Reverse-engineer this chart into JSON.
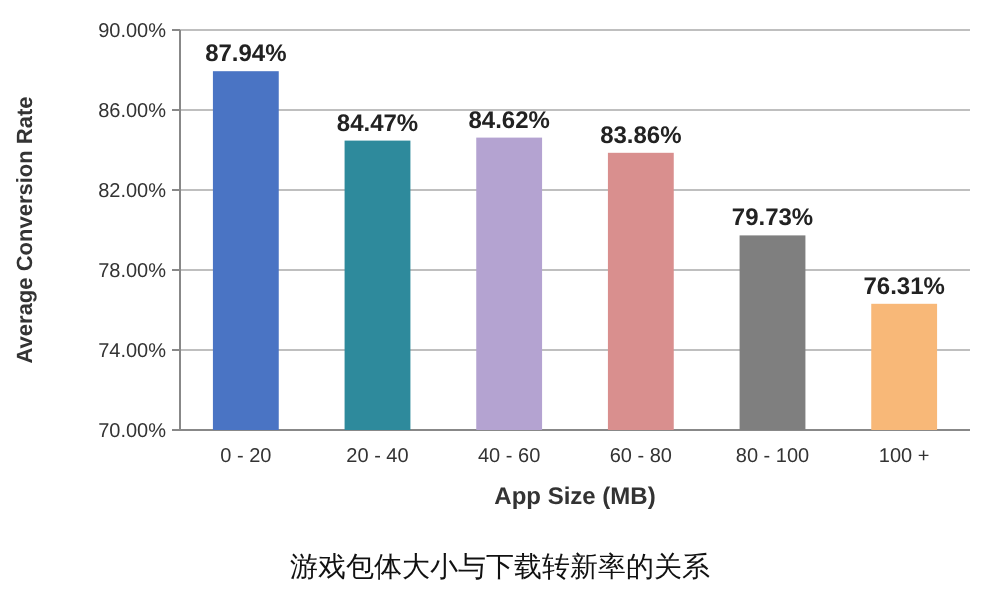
{
  "chart_data": {
    "type": "bar",
    "title": "游戏包体大小与下载转新率的关系",
    "xlabel": "App Size (MB)",
    "ylabel": "Average Conversion Rate",
    "categories": [
      "0 - 20",
      "20 - 40",
      "40 - 60",
      "60 - 80",
      "80 - 100",
      "100 +"
    ],
    "values": [
      87.94,
      84.47,
      84.62,
      83.86,
      79.73,
      76.31
    ],
    "value_labels": [
      "87.94%",
      "84.47%",
      "84.62%",
      "83.86%",
      "79.73%",
      "76.31%"
    ],
    "colors": [
      "#4a74c4",
      "#2e8a9c",
      "#b4a3d1",
      "#d98f8e",
      "#7f7f7f",
      "#f8b878"
    ],
    "ylim": [
      70,
      90
    ],
    "yticks": [
      {
        "value": 70,
        "label": "70.00%"
      },
      {
        "value": 74,
        "label": "74.00%"
      },
      {
        "value": 78,
        "label": "78.00%"
      },
      {
        "value": 82,
        "label": "82.00%"
      },
      {
        "value": 86,
        "label": "86.00%"
      },
      {
        "value": 90,
        "label": "90.00%"
      }
    ],
    "grid": "y"
  }
}
